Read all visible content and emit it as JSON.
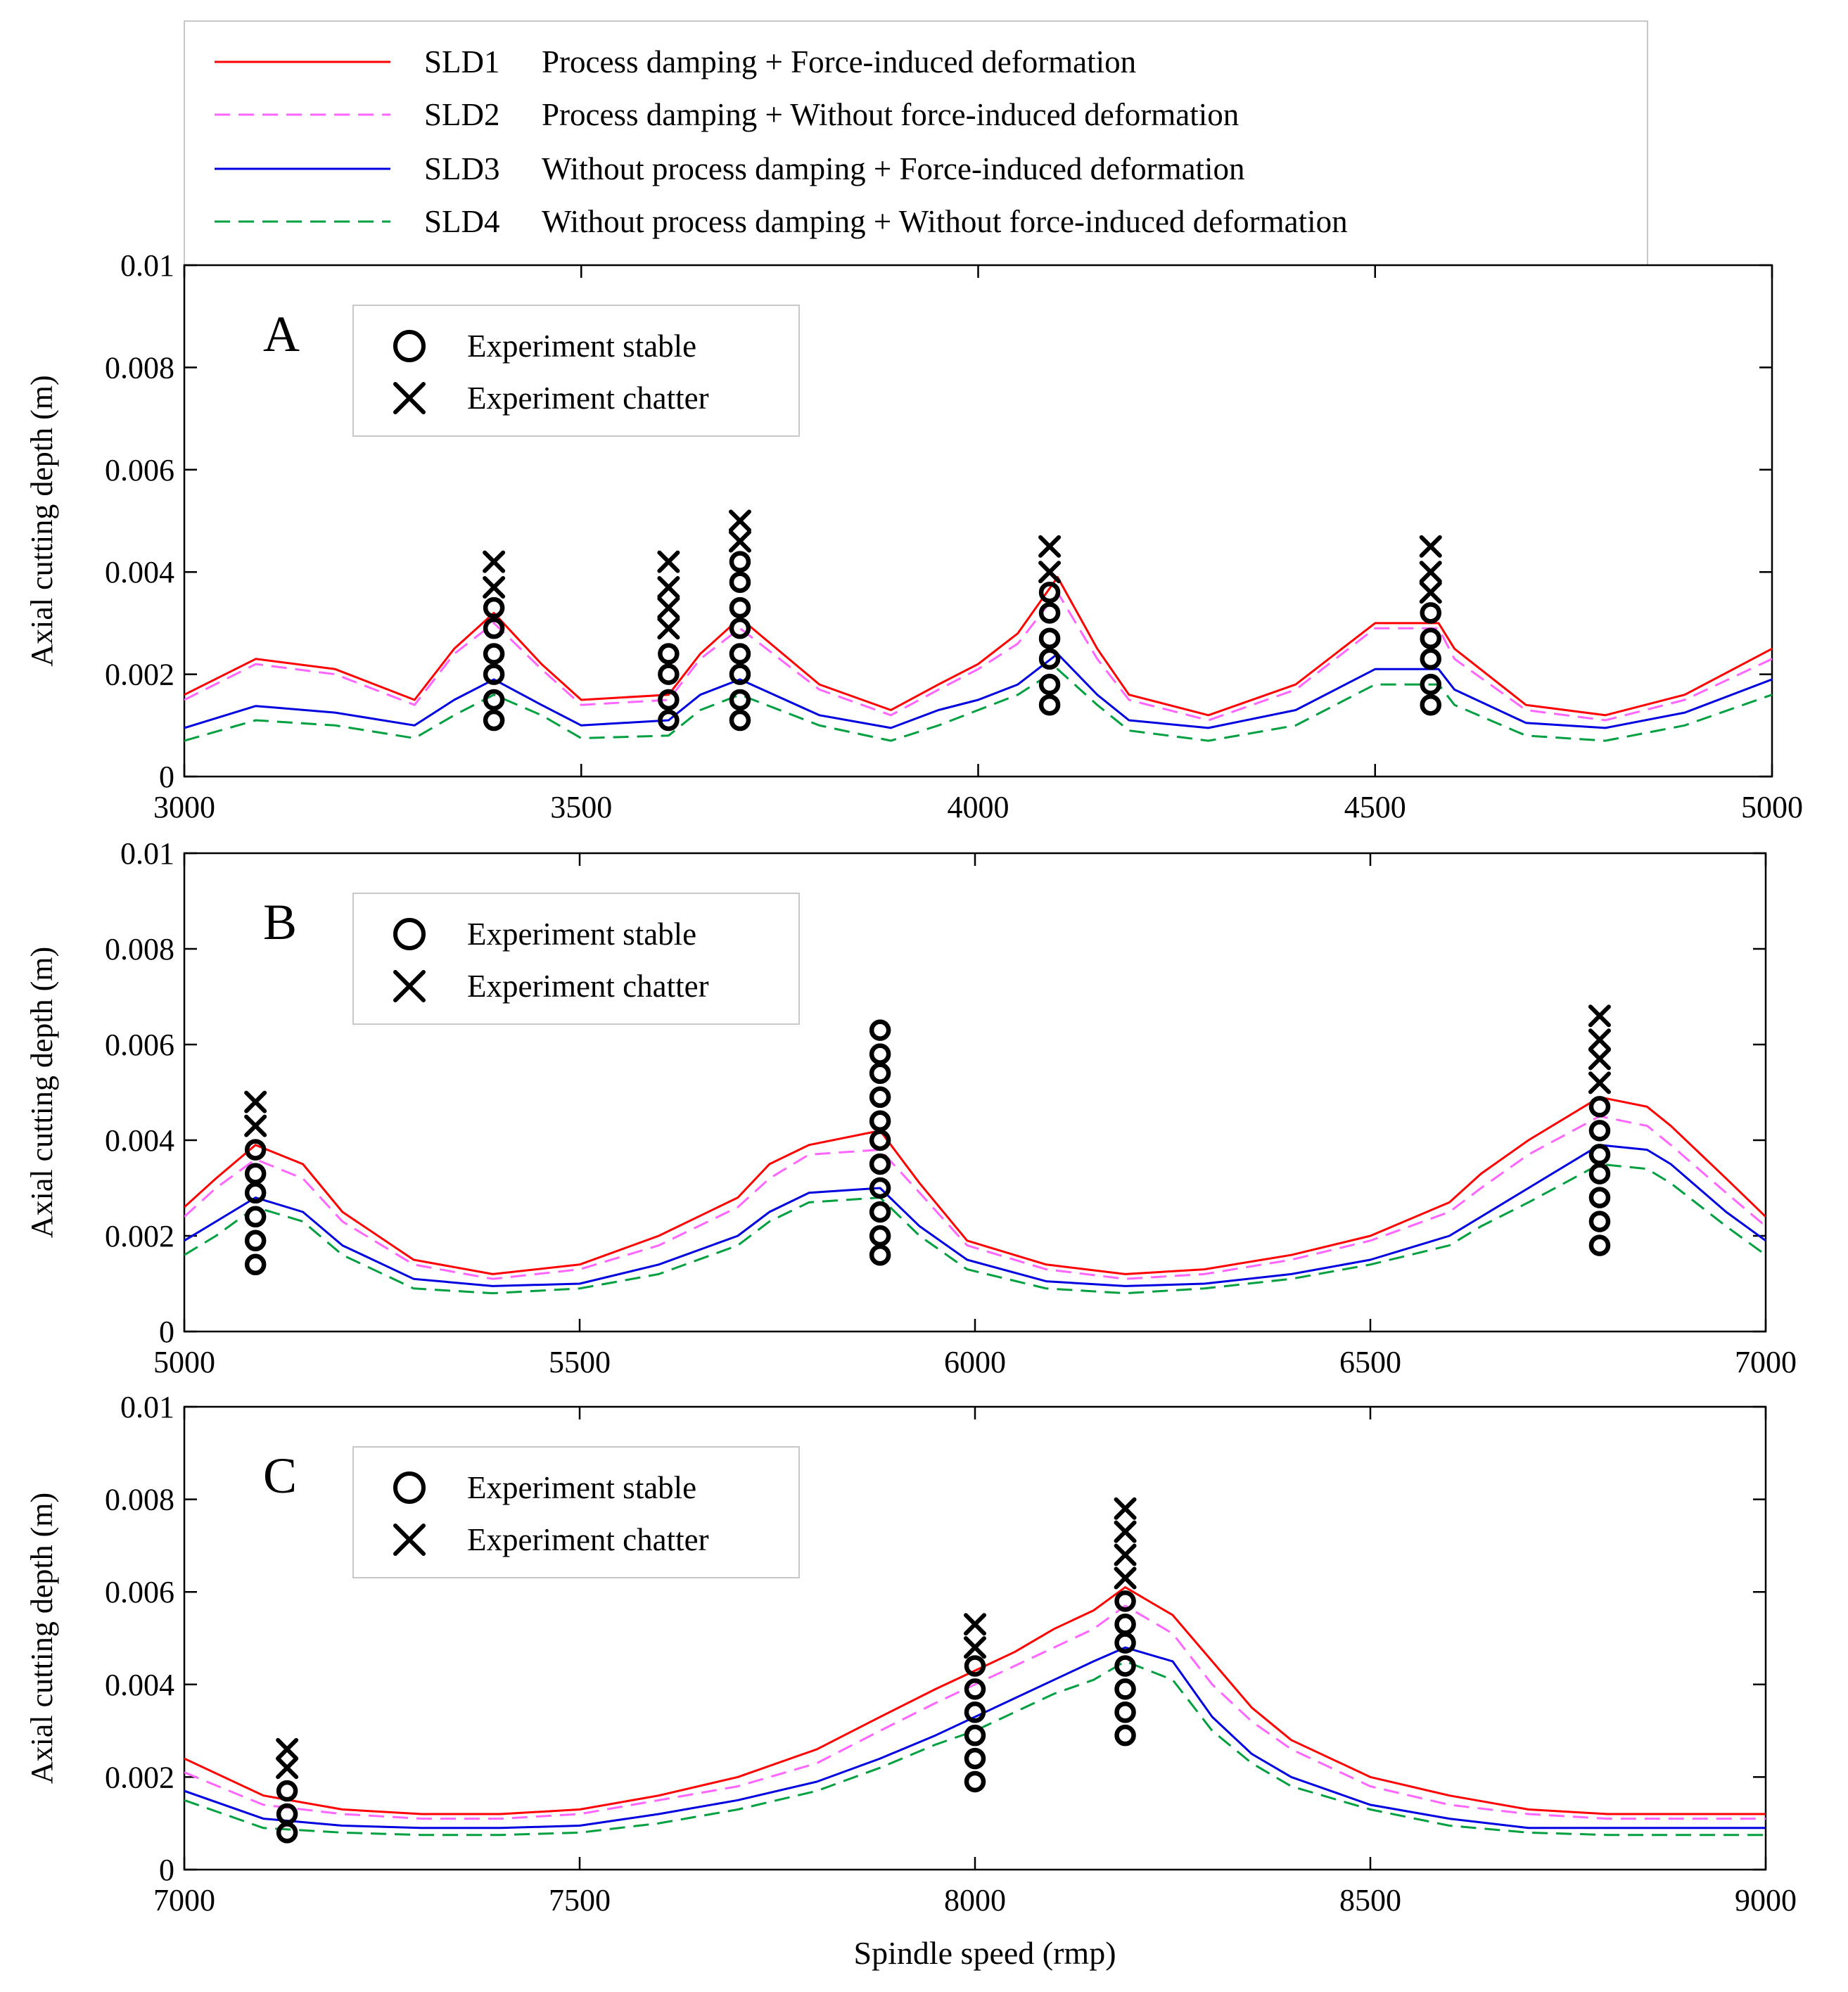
{
  "legend": {
    "entries": [
      {
        "key": "SLD1",
        "desc": "Process damping + Force-induced deformation",
        "color": "#ff0000",
        "dash": false
      },
      {
        "key": "SLD2",
        "desc": "Process damping + Without force-induced deformation",
        "color": "#ff66ff",
        "dash": true
      },
      {
        "key": "SLD3",
        "desc": "Without process damping + Force-induced deformation",
        "color": "#0000e0",
        "dash": false
      },
      {
        "key": "SLD4",
        "desc": "Without process damping + Without force-induced deformation",
        "color": "#00a040",
        "dash": true
      }
    ]
  },
  "marker_legend": {
    "stable": "Experiment  stable",
    "chatter": "Experiment  chatter"
  },
  "ylabel": "Axial cutting depth  (m)",
  "xlabel": "Spindle speed  (rmp)",
  "chart_data": [
    {
      "type": "line",
      "panel": "A",
      "xlim": [
        3000,
        5000
      ],
      "ylim": [
        0,
        0.01
      ],
      "xticks": [
        "3000",
        "3500",
        "4000",
        "4500",
        "5000"
      ],
      "yticks": [
        "0",
        "0.002",
        "0.004",
        "0.006",
        "0.008",
        "0.01"
      ],
      "x": [
        3000,
        3090,
        3190,
        3290,
        3340,
        3390,
        3450,
        3500,
        3610,
        3650,
        3700,
        3800,
        3890,
        3950,
        4000,
        4050,
        4100,
        4150,
        4190,
        4290,
        4400,
        4450,
        4500,
        4580,
        4600,
        4690,
        4790,
        4890,
        5000
      ],
      "series": [
        {
          "name": "SLD1",
          "values": [
            0.0016,
            0.0023,
            0.0021,
            0.0015,
            0.0025,
            0.0032,
            0.0022,
            0.0015,
            0.0016,
            0.0024,
            0.0031,
            0.0018,
            0.0013,
            0.0018,
            0.0022,
            0.0028,
            0.0039,
            0.0025,
            0.0016,
            0.0012,
            0.0018,
            0.0024,
            0.003,
            0.003,
            0.0025,
            0.0014,
            0.0012,
            0.0016,
            0.0025
          ]
        },
        {
          "name": "SLD2",
          "values": [
            0.0015,
            0.0022,
            0.002,
            0.0014,
            0.0024,
            0.003,
            0.0021,
            0.0014,
            0.0015,
            0.0023,
            0.0029,
            0.0017,
            0.0012,
            0.0017,
            0.0021,
            0.0026,
            0.0036,
            0.0023,
            0.0015,
            0.0011,
            0.0017,
            0.0023,
            0.0029,
            0.0029,
            0.0023,
            0.0013,
            0.0011,
            0.0015,
            0.0023
          ]
        },
        {
          "name": "SLD3",
          "values": [
            0.00095,
            0.00138,
            0.00125,
            0.001,
            0.0015,
            0.0019,
            0.0014,
            0.001,
            0.0011,
            0.0016,
            0.0019,
            0.0012,
            0.00095,
            0.0013,
            0.0015,
            0.0018,
            0.0024,
            0.0016,
            0.0011,
            0.00095,
            0.0013,
            0.0017,
            0.0021,
            0.0021,
            0.0017,
            0.00105,
            0.00095,
            0.00125,
            0.0019
          ]
        },
        {
          "name": "SLD4",
          "values": [
            0.0007,
            0.0011,
            0.001,
            0.00075,
            0.0012,
            0.0016,
            0.0012,
            0.00075,
            0.0008,
            0.0013,
            0.0016,
            0.001,
            0.0007,
            0.001,
            0.0013,
            0.0016,
            0.0021,
            0.0014,
            0.0009,
            0.0007,
            0.001,
            0.0014,
            0.0018,
            0.0018,
            0.0014,
            0.0008,
            0.0007,
            0.001,
            0.0016
          ]
        }
      ],
      "experiments": [
        {
          "x": 3390,
          "stable": [
            0.0011,
            0.0015,
            0.002,
            0.0024,
            0.0029,
            0.0033
          ],
          "chatter": [
            0.0037,
            0.0042
          ]
        },
        {
          "x": 3610,
          "stable": [
            0.0011,
            0.0015,
            0.002,
            0.0024
          ],
          "chatter": [
            0.0029,
            0.0033,
            0.0037,
            0.0042
          ]
        },
        {
          "x": 3700,
          "stable": [
            0.0011,
            0.0015,
            0.002,
            0.0024,
            0.0029,
            0.0033,
            0.0038,
            0.0042
          ],
          "chatter": [
            0.0046,
            0.005
          ]
        },
        {
          "x": 4090,
          "stable": [
            0.0014,
            0.0018,
            0.0023,
            0.0027,
            0.0032,
            0.0036
          ],
          "chatter": [
            0.004,
            0.0045
          ]
        },
        {
          "x": 4570,
          "stable": [
            0.0014,
            0.0018,
            0.0023,
            0.0027,
            0.0032
          ],
          "chatter": [
            0.0036,
            0.004,
            0.0045
          ]
        }
      ]
    },
    {
      "type": "line",
      "panel": "B",
      "xlim": [
        5000,
        7000
      ],
      "ylim": [
        0,
        0.01
      ],
      "xticks": [
        "5000",
        "5500",
        "6000",
        "6500",
        "7000"
      ],
      "yticks": [
        "0",
        "0.002",
        "0.004",
        "0.006",
        "0.008",
        "0.01"
      ],
      "x": [
        5000,
        5040,
        5090,
        5150,
        5200,
        5290,
        5390,
        5500,
        5600,
        5700,
        5740,
        5790,
        5880,
        5930,
        5990,
        6090,
        6190,
        6290,
        6400,
        6500,
        6600,
        6640,
        6700,
        6790,
        6850,
        6880,
        6950,
        7000
      ],
      "series": [
        {
          "name": "SLD1",
          "values": [
            0.0026,
            0.0032,
            0.0039,
            0.0035,
            0.0025,
            0.0015,
            0.0012,
            0.0014,
            0.002,
            0.0028,
            0.0035,
            0.0039,
            0.0042,
            0.0031,
            0.0019,
            0.0014,
            0.0012,
            0.0013,
            0.0016,
            0.002,
            0.0027,
            0.0033,
            0.004,
            0.0049,
            0.0047,
            0.0043,
            0.0032,
            0.0024
          ]
        },
        {
          "name": "SLD2",
          "values": [
            0.0024,
            0.003,
            0.0036,
            0.0032,
            0.0023,
            0.0014,
            0.0011,
            0.0013,
            0.0018,
            0.0026,
            0.0032,
            0.0037,
            0.0038,
            0.0029,
            0.0018,
            0.0013,
            0.0011,
            0.0012,
            0.0015,
            0.0019,
            0.0025,
            0.003,
            0.0037,
            0.0045,
            0.0043,
            0.0039,
            0.0029,
            0.0022
          ]
        },
        {
          "name": "SLD3",
          "values": [
            0.0019,
            0.0023,
            0.0028,
            0.0025,
            0.0018,
            0.0011,
            0.00095,
            0.001,
            0.0014,
            0.002,
            0.0025,
            0.0029,
            0.003,
            0.0022,
            0.0015,
            0.00105,
            0.00095,
            0.001,
            0.0012,
            0.0015,
            0.002,
            0.0024,
            0.003,
            0.0039,
            0.0038,
            0.0035,
            0.0025,
            0.0019
          ]
        },
        {
          "name": "SLD4",
          "values": [
            0.0016,
            0.002,
            0.0026,
            0.0023,
            0.0016,
            0.0009,
            0.0008,
            0.0009,
            0.0012,
            0.0018,
            0.0023,
            0.0027,
            0.0028,
            0.002,
            0.0013,
            0.0009,
            0.0008,
            0.0009,
            0.0011,
            0.0014,
            0.0018,
            0.0022,
            0.0027,
            0.0035,
            0.0034,
            0.0031,
            0.0022,
            0.0016
          ]
        }
      ],
      "experiments": [
        {
          "x": 5090,
          "stable": [
            0.0014,
            0.0019,
            0.0024,
            0.0029,
            0.0033,
            0.0038
          ],
          "chatter": [
            0.0043,
            0.0048
          ]
        },
        {
          "x": 5880,
          "stable": [
            0.0016,
            0.002,
            0.0025,
            0.003,
            0.0035,
            0.004,
            0.0044,
            0.0049,
            0.0054,
            0.0058,
            0.0063
          ],
          "chatter": []
        },
        {
          "x": 6790,
          "stable": [
            0.0018,
            0.0023,
            0.0028,
            0.0033,
            0.0037,
            0.0042,
            0.0047
          ],
          "chatter": [
            0.0052,
            0.0057,
            0.0061,
            0.0066
          ]
        }
      ]
    },
    {
      "type": "line",
      "panel": "C",
      "xlim": [
        7000,
        9000
      ],
      "ylim": [
        0,
        0.01
      ],
      "xticks": [
        "7000",
        "7500",
        "8000",
        "8500",
        "9000"
      ],
      "yticks": [
        "0",
        "0.002",
        "0.004",
        "0.006",
        "0.008",
        "0.01"
      ],
      "x": [
        7000,
        7100,
        7200,
        7300,
        7400,
        7500,
        7600,
        7700,
        7800,
        7880,
        7950,
        8000,
        8050,
        8100,
        8150,
        8190,
        8250,
        8300,
        8350,
        8400,
        8500,
        8600,
        8700,
        8800,
        8900,
        9000
      ],
      "series": [
        {
          "name": "SLD1",
          "values": [
            0.0024,
            0.0016,
            0.0013,
            0.0012,
            0.0012,
            0.0013,
            0.0016,
            0.002,
            0.0026,
            0.0033,
            0.0039,
            0.0043,
            0.0047,
            0.0052,
            0.0056,
            0.0061,
            0.0055,
            0.0045,
            0.0035,
            0.0028,
            0.002,
            0.0016,
            0.0013,
            0.0012,
            0.0012,
            0.0012
          ]
        },
        {
          "name": "SLD2",
          "values": [
            0.0021,
            0.0014,
            0.0012,
            0.0011,
            0.0011,
            0.0012,
            0.0015,
            0.0018,
            0.0023,
            0.003,
            0.0036,
            0.004,
            0.0044,
            0.0048,
            0.0052,
            0.0057,
            0.0051,
            0.004,
            0.0032,
            0.0026,
            0.0018,
            0.0014,
            0.0012,
            0.0011,
            0.0011,
            0.0011
          ]
        },
        {
          "name": "SLD3",
          "values": [
            0.0017,
            0.0011,
            0.00095,
            0.0009,
            0.0009,
            0.00095,
            0.0012,
            0.0015,
            0.0019,
            0.0024,
            0.0029,
            0.0033,
            0.0037,
            0.0041,
            0.0045,
            0.0048,
            0.0045,
            0.0033,
            0.0025,
            0.002,
            0.0014,
            0.0011,
            0.0009,
            0.0009,
            0.0009,
            0.0009
          ]
        },
        {
          "name": "SLD4",
          "values": [
            0.0015,
            0.0009,
            0.0008,
            0.00075,
            0.00075,
            0.0008,
            0.001,
            0.0013,
            0.0017,
            0.0022,
            0.0027,
            0.003,
            0.0034,
            0.0038,
            0.0041,
            0.0045,
            0.0041,
            0.003,
            0.0023,
            0.0018,
            0.0013,
            0.00095,
            0.0008,
            0.00075,
            0.00075,
            0.00075
          ]
        }
      ],
      "experiments": [
        {
          "x": 7130,
          "stable": [
            0.0008,
            0.0012,
            0.0017
          ],
          "chatter": [
            0.0022,
            0.0026
          ]
        },
        {
          "x": 8000,
          "stable": [
            0.0019,
            0.0024,
            0.0029,
            0.0034,
            0.0039,
            0.0044
          ],
          "chatter": [
            0.0048,
            0.0053
          ]
        },
        {
          "x": 8190,
          "stable": [
            0.0029,
            0.0034,
            0.0039,
            0.0044,
            0.0049,
            0.0053,
            0.0058
          ],
          "chatter": [
            0.0063,
            0.0068,
            0.0073,
            0.0078
          ]
        }
      ]
    }
  ]
}
